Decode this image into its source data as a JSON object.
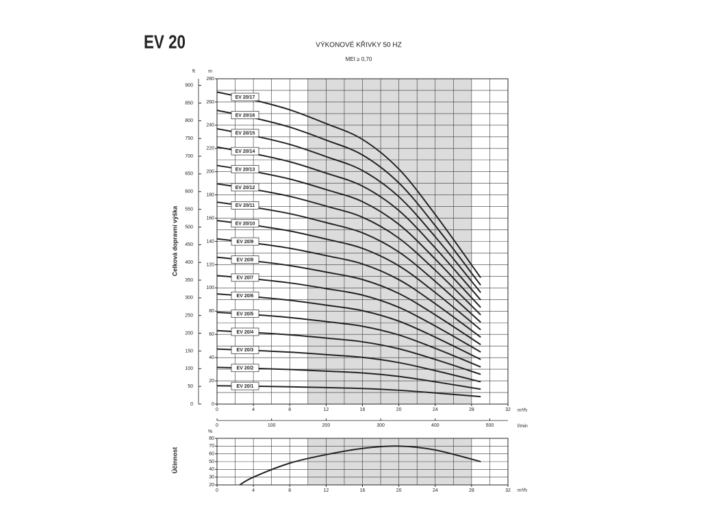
{
  "header": {
    "title": "EV 20"
  },
  "chart_data": [
    {
      "type": "line",
      "title": "VÝKONOVÉ KŘIVKY 50 HZ",
      "subtitle": "MEI ≥ 0,70",
      "ylabel": "Celková dopravní výška",
      "xlabel": "m³/h",
      "yunit": "m",
      "y2unit": "ft",
      "x2label": "l/min",
      "x": [
        0,
        4,
        8,
        12,
        16,
        20,
        24,
        29
      ],
      "xlim": [
        0,
        32
      ],
      "xticks": [
        0,
        4,
        8,
        12,
        16,
        20,
        24,
        28,
        32
      ],
      "xgrid_step": 2,
      "ylim": [
        0,
        280
      ],
      "yticks": [
        0,
        20,
        40,
        60,
        80,
        100,
        120,
        140,
        160,
        180,
        200,
        220,
        240,
        260,
        280
      ],
      "ygrid_step": 10,
      "y2lim": [
        0,
        918.6
      ],
      "y2ticks": [
        0,
        50,
        100,
        150,
        200,
        250,
        300,
        350,
        400,
        450,
        500,
        550,
        600,
        650,
        700,
        750,
        800,
        850,
        900
      ],
      "x2lim": [
        0,
        533.3
      ],
      "x2ticks": [
        0,
        100,
        200,
        300,
        400,
        500
      ],
      "shade": [
        10,
        28
      ],
      "grid": true,
      "series": [
        {
          "name": "EV 20/1",
          "color": "#222222",
          "values": [
            15.8,
            15.4,
            14.9,
            14.2,
            13.4,
            11.9,
            9.6,
            6.4
          ]
        },
        {
          "name": "EV 20/2",
          "color": "#222222",
          "values": [
            31.6,
            30.8,
            29.8,
            28.4,
            26.8,
            23.8,
            19.2,
            12.8
          ]
        },
        {
          "name": "EV 20/3",
          "color": "#222222",
          "values": [
            47.4,
            46.2,
            44.7,
            42.6,
            40.2,
            35.7,
            28.8,
            19.2
          ]
        },
        {
          "name": "EV 20/4",
          "color": "#222222",
          "values": [
            63.2,
            61.6,
            59.6,
            56.8,
            53.6,
            47.6,
            38.4,
            25.6
          ]
        },
        {
          "name": "EV 20/5",
          "color": "#222222",
          "values": [
            79,
            77,
            74.5,
            71,
            67,
            59.5,
            48,
            32
          ]
        },
        {
          "name": "EV 20/6",
          "color": "#222222",
          "values": [
            94.8,
            92.4,
            89.4,
            85.2,
            80.4,
            71.4,
            57.6,
            38.4
          ]
        },
        {
          "name": "EV 20/7",
          "color": "#222222",
          "values": [
            110.6,
            107.8,
            104.3,
            99.4,
            93.8,
            83.3,
            67.2,
            44.8
          ]
        },
        {
          "name": "EV 20/8",
          "color": "#222222",
          "values": [
            126.4,
            123.2,
            119.2,
            113.6,
            107.2,
            95.2,
            76.8,
            51.2
          ]
        },
        {
          "name": "EV 20/9",
          "color": "#222222",
          "values": [
            142.2,
            138.6,
            134.1,
            127.8,
            120.6,
            107.1,
            86.4,
            57.6
          ]
        },
        {
          "name": "EV 20/10",
          "color": "#222222",
          "values": [
            158,
            154,
            149,
            142,
            134,
            119,
            96,
            64
          ]
        },
        {
          "name": "EV 20/11",
          "color": "#222222",
          "values": [
            173.8,
            169.4,
            163.9,
            156.2,
            147.4,
            130.9,
            105.6,
            70.4
          ]
        },
        {
          "name": "EV 20/12",
          "color": "#222222",
          "values": [
            189.6,
            184.8,
            178.8,
            170.4,
            160.8,
            142.8,
            115.2,
            76.8
          ]
        },
        {
          "name": "EV 20/13",
          "color": "#222222",
          "values": [
            205.4,
            200.2,
            193.7,
            184.6,
            174.2,
            154.7,
            124.8,
            83.2
          ]
        },
        {
          "name": "EV 20/14",
          "color": "#222222",
          "values": [
            221.2,
            215.6,
            208.6,
            198.8,
            187.6,
            166.6,
            134.4,
            89.6
          ]
        },
        {
          "name": "EV 20/15",
          "color": "#222222",
          "values": [
            237,
            231,
            223.5,
            213,
            201,
            178.5,
            144,
            96
          ]
        },
        {
          "name": "EV 20/16",
          "color": "#222222",
          "values": [
            252.8,
            246.4,
            238.4,
            227.2,
            214.4,
            190.4,
            153.6,
            102.4
          ]
        },
        {
          "name": "EV 20/17",
          "color": "#222222",
          "values": [
            268.6,
            261.8,
            253.3,
            241.4,
            227.8,
            202.3,
            163.2,
            108.8
          ]
        }
      ]
    },
    {
      "type": "line",
      "ylabel": "Účinnost",
      "xlabel": "m³/h",
      "yunit": "%",
      "x": [
        2.5,
        4,
        8,
        12,
        16,
        20,
        24,
        29
      ],
      "xlim": [
        0,
        32
      ],
      "xticks": [
        0,
        4,
        8,
        12,
        16,
        20,
        24,
        28,
        32
      ],
      "xgrid_step": 2,
      "ylim": [
        20,
        80
      ],
      "yticks": [
        20,
        30,
        40,
        50,
        60,
        70,
        80
      ],
      "ygrid_step": 10,
      "shade": [
        10,
        28
      ],
      "grid": true,
      "series": [
        {
          "color": "#222222",
          "values": [
            20,
            30,
            48,
            59,
            67,
            70,
            65,
            50
          ]
        }
      ]
    }
  ]
}
